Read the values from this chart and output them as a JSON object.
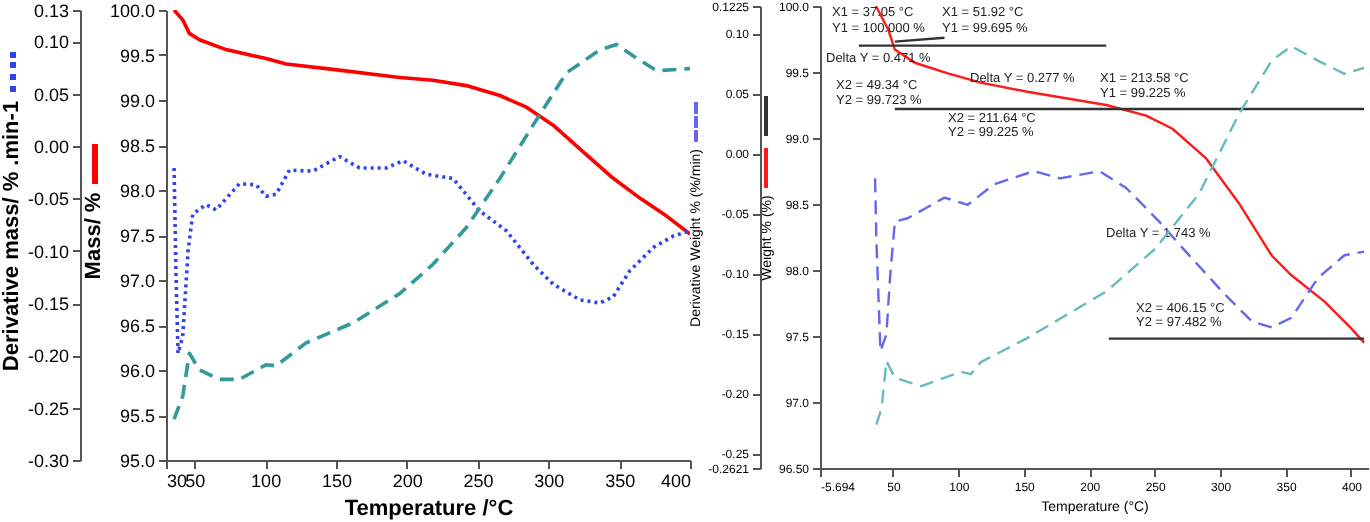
{
  "chart_data": [
    {
      "type": "line",
      "xlabel": "Temperature /°C",
      "ylabel": "Mass/ %",
      "y2label": "Derivative mass/ % .min-1",
      "xlim": [
        30,
        400
      ],
      "xticks": [
        30,
        50,
        100,
        150,
        200,
        250,
        300,
        350,
        400
      ],
      "ylim": [
        95,
        100
      ],
      "yticks": [
        {
          "value": 95,
          "label": "95.0"
        },
        95.5,
        {
          "value": 96,
          "label": "96.0"
        },
        96.5,
        {
          "value": 97,
          "label": "97.0"
        },
        97.5,
        {
          "value": 98,
          "label": "98.0"
        },
        98.5,
        {
          "value": 99,
          "label": "99.0"
        },
        99.5,
        {
          "value": 100,
          "label": "100.0"
        }
      ],
      "y2lim": [
        -0.3,
        0.13
      ],
      "y2ticks": [
        {
          "value": -0.3,
          "label": "-0.30"
        },
        -0.25,
        {
          "value": -0.2,
          "label": "-0.20"
        },
        -0.15,
        {
          "value": -0.1,
          "label": "-0.10"
        },
        -0.05,
        {
          "value": 0,
          "label": "0.00"
        },
        0.05,
        {
          "value": 0.1,
          "label": "0.10"
        },
        0.13
      ],
      "series": [
        {
          "color": "#ff0000",
          "line_style": "solid",
          "x": [
            35.7,
            41.8,
            46.5,
            53.6,
            72.4,
            100.7,
            114.8,
            147.8,
            195,
            218.5,
            242,
            265.7,
            284.5,
            303.4,
            322,
            345.8,
            364.6,
            383.5,
            400
          ],
          "values": [
            100.0,
            99.89,
            99.74,
            99.67,
            99.56,
            99.46,
            99.4,
            99.34,
            99.25,
            99.22,
            99.16,
            99.05,
            98.92,
            98.72,
            98.46,
            98.13,
            97.91,
            97.71,
            97.51
          ]
        },
        {
          "color": "#3344ee",
          "line_style": "dotted",
          "axis": "y2",
          "x": [
            35.7,
            37.1,
            38.5,
            41.8,
            45.6,
            48.9,
            58.3,
            65.4,
            81.8,
            93.6,
            100.7,
            107.8,
            117.2,
            133.7,
            152.5,
            166.7,
            185.5,
            197.3,
            213.8,
            232.7,
            251.5,
            270.4,
            289.2,
            303.4,
            322.2,
            336.4,
            345.8,
            357.6,
            374.1,
            388.2,
            400
          ],
          "values": [
            -0.021,
            -0.125,
            -0.198,
            -0.182,
            -0.1,
            -0.065,
            -0.056,
            -0.061,
            -0.036,
            -0.037,
            -0.048,
            -0.046,
            -0.023,
            -0.024,
            -0.01,
            -0.021,
            -0.021,
            -0.014,
            -0.027,
            -0.031,
            -0.062,
            -0.081,
            -0.113,
            -0.132,
            -0.147,
            -0.15,
            -0.144,
            -0.119,
            -0.097,
            -0.086,
            -0.081
          ]
        },
        {
          "color": "#339999",
          "line_style": "dashed",
          "axis": "y2",
          "x": [
            35.7,
            41.8,
            46.5,
            53.6,
            67.7,
            81.8,
            100.7,
            107.8,
            129,
            162,
            195,
            218.5,
            242,
            265.7,
            289.2,
            312.8,
            336.4,
            348.1,
            360,
            376.4,
            400
          ],
          "values": [
            -0.261,
            -0.239,
            -0.198,
            -0.214,
            -0.223,
            -0.223,
            -0.209,
            -0.21,
            -0.188,
            -0.169,
            -0.141,
            -0.113,
            -0.078,
            -0.031,
            0.02,
            0.07,
            0.092,
            0.097,
            0.086,
            0.072,
            0.074
          ]
        }
      ]
    },
    {
      "type": "line",
      "xlabel": "Temperature (°C)",
      "ylabel": "Weight % (%)",
      "y2label": "Derivative Weight % (%/min)",
      "xlim": [
        -5.694,
        413
      ],
      "xticks": [
        -5.694,
        50,
        100,
        150,
        200,
        250,
        300,
        350,
        400
      ],
      "ylim": [
        96.5,
        100
      ],
      "yticks": [
        {
          "value": 96.5,
          "label": "96.50"
        },
        {
          "value": 97,
          "label": "97.0"
        },
        97.5,
        {
          "value": 98,
          "label": "98.0"
        },
        98.5,
        {
          "value": 99,
          "label": "99.0"
        },
        99.5,
        {
          "value": 100,
          "label": "100.0"
        }
      ],
      "y2lim": [
        -0.2621,
        0.1225
      ],
      "y2ticks": [
        -0.2621,
        -0.25,
        {
          "value": -0.2,
          "label": "-0.20"
        },
        -0.15,
        {
          "value": -0.1,
          "label": "-0.10"
        },
        -0.05,
        {
          "value": 0,
          "label": "0.00"
        },
        0.05,
        {
          "value": 0.1,
          "label": "0.10"
        },
        0.1225
      ],
      "series": [
        {
          "color": "#ff1a1a",
          "line_style": "solid",
          "x": [
            37.05,
            46.5,
            51.5,
            66.7,
            92,
            117,
            152.6,
            213,
            243.5,
            263.6,
            288.9,
            314.1,
            339.4,
            354.5,
            379.8,
            400,
            410
          ],
          "values": [
            100.0,
            99.82,
            99.67,
            99.57,
            99.49,
            99.42,
            99.35,
            99.25,
            99.17,
            99.07,
            98.85,
            98.51,
            98.11,
            97.96,
            97.76,
            97.56,
            97.45
          ]
        },
        {
          "color": "#333333",
          "line_style": "solid",
          "x": [
            24,
            213
          ],
          "values": [
            99.7,
            99.7
          ]
        },
        {
          "color": "#333333",
          "line_style": "solid",
          "x": [
            51.5,
            89.4
          ],
          "values": [
            99.73,
            99.76
          ]
        },
        {
          "color": "#333333",
          "line_style": "solid",
          "x": [
            51.5,
            410
          ],
          "values": [
            99.22,
            99.22
          ]
        },
        {
          "color": "#333333",
          "line_style": "solid",
          "x": [
            215,
            410
          ],
          "values": [
            97.48,
            97.48
          ]
        },
        {
          "color": "#6666ee",
          "line_style": "dashed",
          "axis": "y2",
          "x": [
            36.4,
            37.4,
            40.5,
            45,
            48,
            51.5,
            61.7,
            89.4,
            107.1,
            127.3,
            157.6,
            177.7,
            208,
            228.3,
            253.5,
            273.8,
            304,
            324.2,
            339.4,
            354.5,
            374.7,
            395,
            410
          ],
          "values": [
            -0.021,
            -0.073,
            -0.165,
            -0.151,
            -0.101,
            -0.057,
            -0.054,
            -0.037,
            -0.043,
            -0.026,
            -0.015,
            -0.021,
            -0.015,
            -0.029,
            -0.057,
            -0.082,
            -0.118,
            -0.14,
            -0.145,
            -0.137,
            -0.104,
            -0.085,
            -0.082
          ]
        },
        {
          "color": "#66bbbb",
          "line_style": "dashed",
          "axis": "y2",
          "x": [
            37.4,
            41.4,
            45,
            51.5,
            71.7,
            102,
            109.5,
            117.1,
            152.6,
            213.2,
            250,
            283.8,
            314.1,
            339.4,
            354.5,
            374.7,
            395,
            410
          ],
          "values": [
            -0.226,
            -0.212,
            -0.173,
            -0.187,
            -0.194,
            -0.182,
            -0.184,
            -0.174,
            -0.154,
            -0.115,
            -0.08,
            -0.034,
            0.032,
            0.077,
            0.089,
            0.077,
            0.066,
            0.071
          ]
        }
      ],
      "annotations": [
        "X1 = 37.05 °C",
        "Y1 = 100.000 %",
        "X1 = 51.92 °C",
        "Y1 = 99.695 %",
        "Delta Y = 0.471 %",
        "X2 = 49.34 °C",
        "Y2 = 99.723 %",
        "Delta Y = 0.277 %",
        "X1 = 213.58 °C",
        "Y1 = 99.225 %",
        "X2 = 211.64 °C",
        "Y2 = 99.225 %",
        "Delta Y = 1.743 %",
        "X2 = 406.15 °C",
        "Y2 = 97.482 %"
      ]
    }
  ]
}
